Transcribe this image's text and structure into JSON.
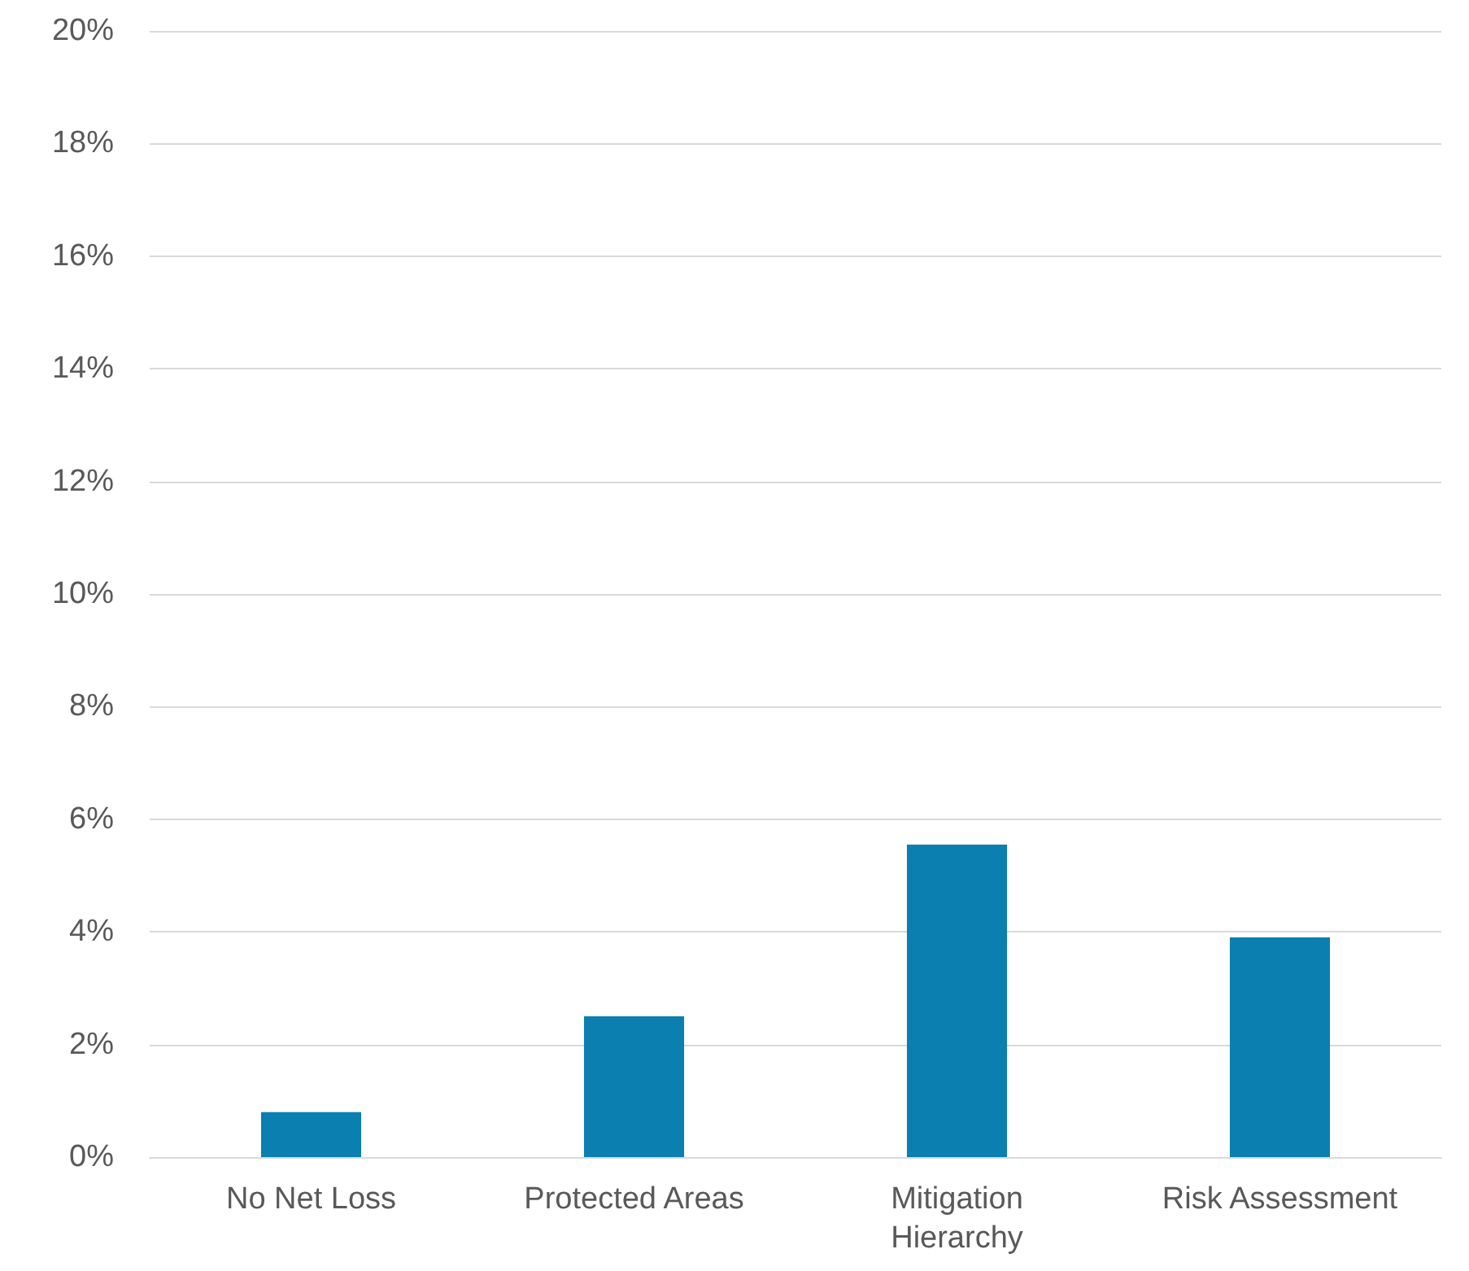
{
  "chart_data": {
    "type": "bar",
    "categories": [
      "No Net Loss",
      "Protected Areas",
      "Mitigation Hierarchy",
      "Risk Assessment"
    ],
    "values": [
      0.8,
      2.5,
      5.55,
      3.9
    ],
    "color": "#0a7fb0",
    "ylim": [
      0,
      20
    ],
    "yticks": [
      {
        "value": 0,
        "label": "0%"
      },
      {
        "value": 2,
        "label": "2%"
      },
      {
        "value": 4,
        "label": "4%"
      },
      {
        "value": 6,
        "label": "6%"
      },
      {
        "value": 8,
        "label": "8%"
      },
      {
        "value": 10,
        "label": "10%"
      },
      {
        "value": 12,
        "label": "12%"
      },
      {
        "value": 14,
        "label": "14%"
      },
      {
        "value": 16,
        "label": "16%"
      },
      {
        "value": 18,
        "label": "18%"
      },
      {
        "value": 20,
        "label": "20%"
      }
    ],
    "grid": "y"
  }
}
